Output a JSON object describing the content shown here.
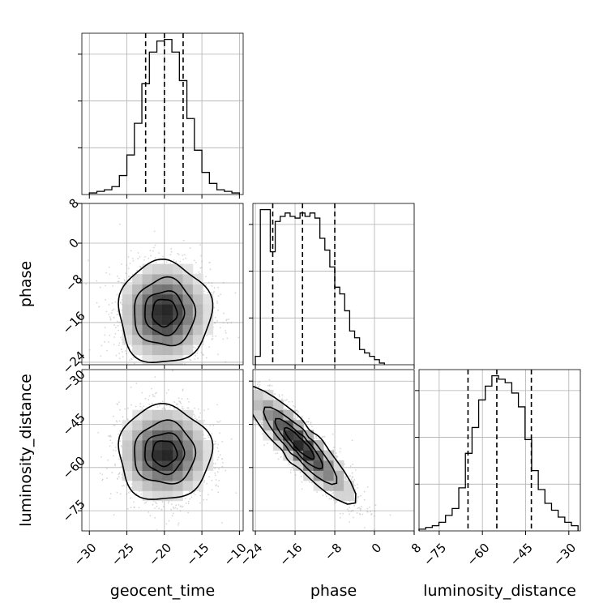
{
  "chart_data": {
    "type": "corner",
    "parameters": [
      "geocent_time",
      "phase",
      "luminosity_distance"
    ],
    "grid": true,
    "axes": {
      "geocent_time": {
        "range": [
          -31,
          -9.5
        ],
        "ticks": [
          -30,
          -25,
          -20,
          -15,
          -10
        ],
        "tick_labels": [
          "−30",
          "−25",
          "−20",
          "−15",
          "−10"
        ]
      },
      "phase": {
        "range": [
          -24.5,
          8
        ],
        "ticks": [
          -24,
          -16,
          -8,
          0,
          8
        ],
        "tick_labels": [
          "−24",
          "−16",
          "−8",
          "0",
          "8"
        ]
      },
      "luminosity_distance": {
        "range": [
          -82,
          -26
        ],
        "ticks": [
          -75,
          -60,
          -45,
          -30
        ],
        "tick_labels": [
          "−75",
          "−60",
          "−45",
          "−30"
        ]
      }
    },
    "histograms": [
      {
        "parameter": "geocent_time",
        "quantiles": [
          -22.5,
          -20.0,
          -17.5
        ],
        "bin_edges": [
          -30,
          -29,
          -28,
          -27,
          -26,
          -25,
          -24,
          -23,
          -22,
          -21,
          -20,
          -19,
          -18,
          -17,
          -16,
          -15,
          -14,
          -13,
          -12,
          -11,
          -10
        ],
        "counts": [
          1,
          2,
          3,
          5,
          12,
          25,
          45,
          70,
          90,
          97,
          98,
          90,
          72,
          48,
          28,
          14,
          7,
          3,
          2,
          1
        ]
      },
      {
        "parameter": "phase",
        "quantiles": [
          -20.5,
          -14.5,
          -8.0
        ],
        "bin_edges": [
          -24,
          -23,
          -22,
          -21,
          -20,
          -19,
          -18,
          -17,
          -16,
          -15,
          -14,
          -13,
          -12,
          -11,
          -10,
          -9,
          -8,
          -7,
          -6,
          -5,
          -4,
          -3,
          -2,
          -1,
          0,
          1,
          2
        ],
        "counts": [
          5,
          92,
          92,
          67,
          85,
          88,
          90,
          88,
          87,
          90,
          88,
          90,
          87,
          75,
          68,
          58,
          46,
          42,
          32,
          20,
          16,
          9,
          7,
          5,
          3,
          1
        ]
      },
      {
        "parameter": "luminosity_distance",
        "quantiles": [
          -65.0,
          -55.0,
          -43.0
        ],
        "bin_edges": [
          -82,
          -79.7,
          -77.4,
          -75.1,
          -72.8,
          -70.5,
          -68.2,
          -65.9,
          -63.6,
          -61.3,
          -59.0,
          -56.7,
          -54.4,
          -52.1,
          -49.8,
          -47.5,
          -45.2,
          -42.9,
          -40.6,
          -38.3,
          -36.0,
          -33.7,
          -31.4,
          -29.1,
          -26.8
        ],
        "counts": [
          1,
          2,
          3,
          5,
          9,
          13,
          25,
          45,
          60,
          76,
          84,
          90,
          88,
          86,
          80,
          72,
          53,
          35,
          24,
          16,
          12,
          8,
          5,
          3
        ]
      }
    ],
    "pairs": [
      {
        "x": "geocent_time",
        "y": "phase",
        "center": [
          -20,
          -14
        ],
        "spread": [
          3,
          5
        ],
        "rho": 0
      },
      {
        "x": "geocent_time",
        "y": "luminosity_distance",
        "center": [
          -20,
          -55
        ],
        "spread": [
          3,
          8
        ],
        "rho": 0
      },
      {
        "x": "phase",
        "y": "luminosity_distance",
        "center": [
          -15,
          -52
        ],
        "spread": [
          5.5,
          10
        ],
        "rho": -0.9
      }
    ],
    "contour_levels": [
      0.12,
      0.4,
      0.68,
      0.86
    ],
    "colors": {
      "line": "#000000",
      "grid": "#b0b0b0",
      "scatter": "#8c8c8c",
      "background": "#ffffff"
    }
  }
}
